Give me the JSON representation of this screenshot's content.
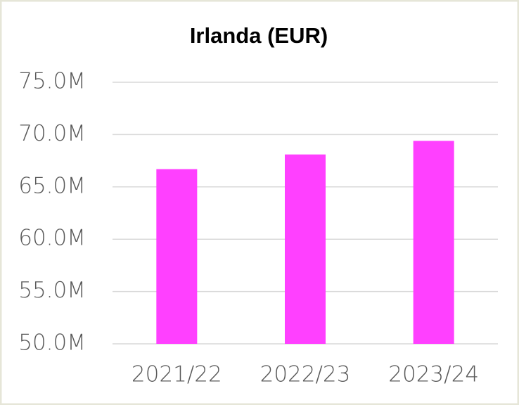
{
  "chart_data": {
    "type": "bar",
    "title": "Irlanda (EUR)",
    "categories": [
      "2021/22",
      "2022/23",
      "2023/24"
    ],
    "values": [
      66700000,
      68100000,
      69400000
    ],
    "color": "#ff40ff",
    "ylim": [
      50000000,
      75000000
    ],
    "yticks": [
      {
        "value": 50000000,
        "label": "50.0M"
      },
      {
        "value": 55000000,
        "label": "55.0M"
      },
      {
        "value": 60000000,
        "label": "60.0M"
      },
      {
        "value": 65000000,
        "label": "65.0M"
      },
      {
        "value": 70000000,
        "label": "70.0M"
      },
      {
        "value": 75000000,
        "label": "75.0M"
      }
    ],
    "grid": true
  }
}
